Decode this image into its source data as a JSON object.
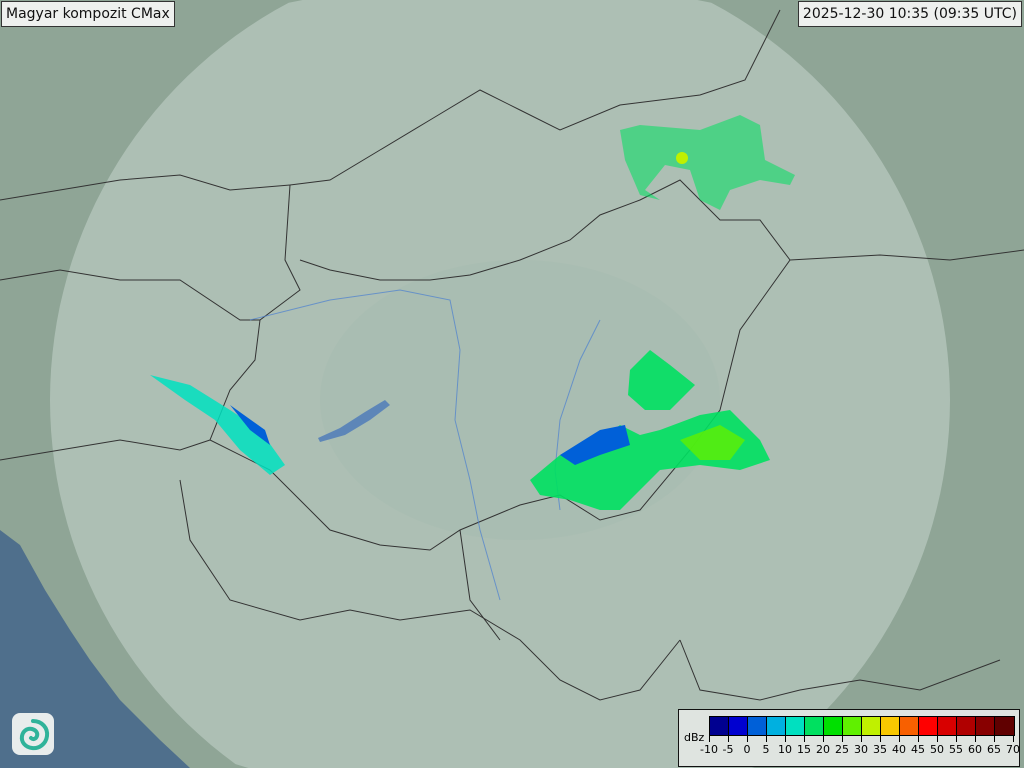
{
  "header": {
    "title": "Magyar kompozit  CMax",
    "timestamp": "2025-12-30 10:35 (09:35 UTC)"
  },
  "legend": {
    "unit": "dBz",
    "ticks": [
      "-10",
      "-5",
      "0",
      "5",
      "10",
      "15",
      "20",
      "25",
      "30",
      "35",
      "40",
      "45",
      "50",
      "55",
      "60",
      "65",
      "70"
    ],
    "colors": [
      "#000090",
      "#0000d0",
      "#0060d8",
      "#00b0e0",
      "#00e0c0",
      "#00e060",
      "#00e000",
      "#60f000",
      "#c0f000",
      "#f8c800",
      "#f86000",
      "#ff0000",
      "#d80000",
      "#b00000",
      "#880000",
      "#600000"
    ]
  },
  "map": {
    "land_color": "#8fa596",
    "coverage_color": "#b9cbc2",
    "sea_color": "#4f6f8c",
    "border_color": "#333333",
    "river_color": "#4a7fd0"
  },
  "logo": {
    "icon": "met-service-swirl-logo"
  }
}
